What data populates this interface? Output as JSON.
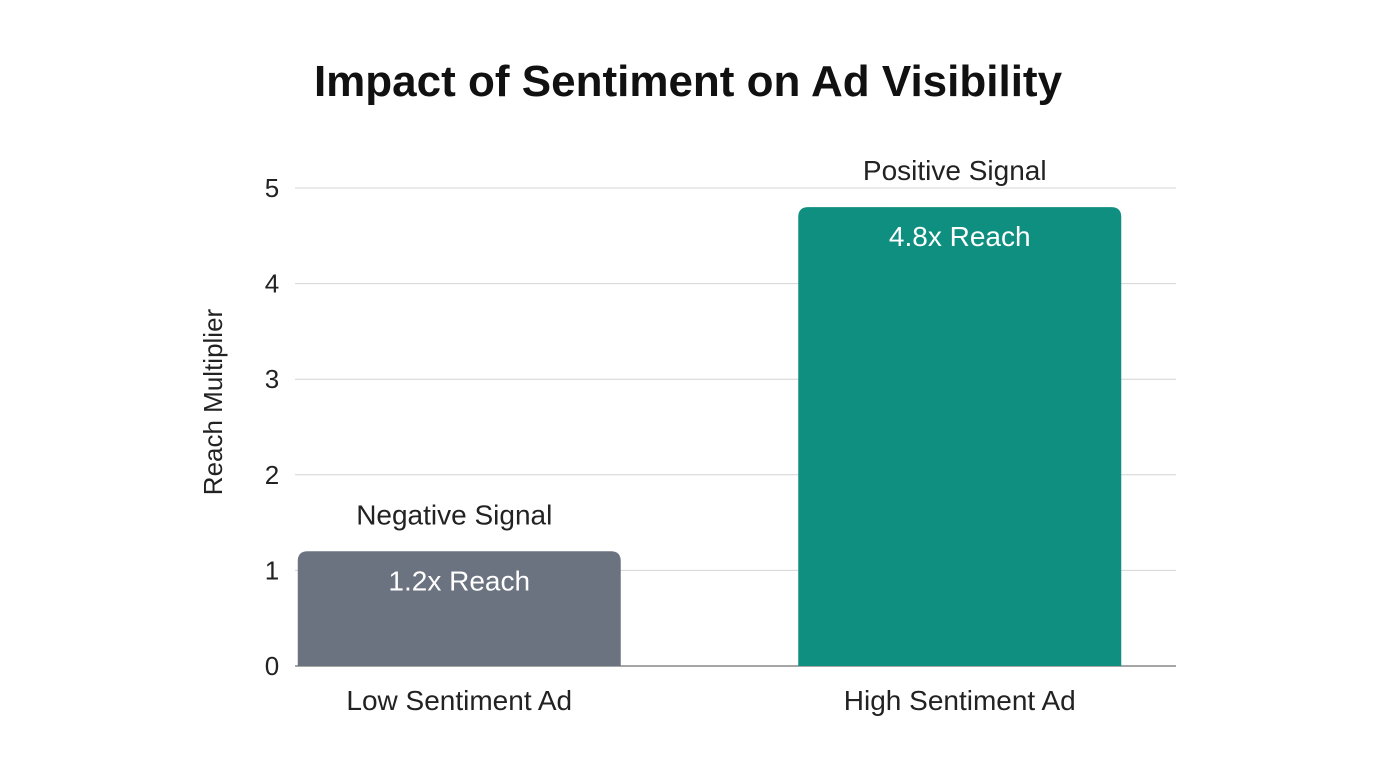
{
  "chart_data": {
    "type": "bar",
    "title": "Impact of Sentiment on Ad Visibility",
    "xlabel": "",
    "ylabel": "Reach Multiplier",
    "ylim": [
      0,
      5
    ],
    "yticks": [
      "0",
      "1",
      "2",
      "3",
      "4",
      "5"
    ],
    "grid": true,
    "categories": [
      "Low Sentiment Ad",
      "High Sentiment Ad"
    ],
    "values": [
      1.2,
      4.8
    ],
    "colors": [
      "#6b7280",
      "#0f8f80"
    ],
    "data_labels": [
      "1.2x Reach",
      "4.8x Reach"
    ],
    "annotations": [
      "Negative Signal",
      "Positive Signal"
    ]
  }
}
